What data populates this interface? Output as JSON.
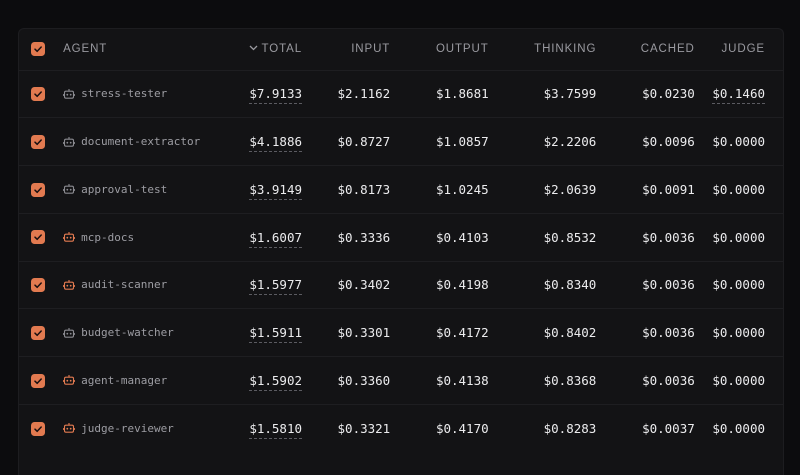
{
  "columns": {
    "agent": "AGENT",
    "total": "TOTAL",
    "input": "INPUT",
    "output": "OUTPUT",
    "thinking": "THINKING",
    "cached": "CACHED",
    "judge": "JUDGE"
  },
  "sort": {
    "column": "total",
    "direction": "desc",
    "icon": "chevron-down-icon"
  },
  "colors": {
    "accent": "#e27a50",
    "accent_muted": "#8a8a90"
  },
  "rows": [
    {
      "agent": "stress-tester",
      "icon": "bot-icon-muted",
      "selected": true,
      "total": "$7.9133",
      "input": "$2.1162",
      "output": "$1.8681",
      "thinking": "$3.7599",
      "cached": "$0.0230",
      "judge": "$0.1460"
    },
    {
      "agent": "document-extractor",
      "icon": "bot-icon-muted",
      "selected": true,
      "total": "$4.1886",
      "input": "$0.8727",
      "output": "$1.0857",
      "thinking": "$2.2206",
      "cached": "$0.0096",
      "judge": "$0.0000"
    },
    {
      "agent": "approval-test",
      "icon": "bot-icon-muted",
      "selected": true,
      "total": "$3.9149",
      "input": "$0.8173",
      "output": "$1.0245",
      "thinking": "$2.0639",
      "cached": "$0.0091",
      "judge": "$0.0000"
    },
    {
      "agent": "mcp-docs",
      "icon": "bot-icon-accent",
      "selected": true,
      "total": "$1.6007",
      "input": "$0.3336",
      "output": "$0.4103",
      "thinking": "$0.8532",
      "cached": "$0.0036",
      "judge": "$0.0000"
    },
    {
      "agent": "audit-scanner",
      "icon": "bot-icon-accent",
      "selected": true,
      "total": "$1.5977",
      "input": "$0.3402",
      "output": "$0.4198",
      "thinking": "$0.8340",
      "cached": "$0.0036",
      "judge": "$0.0000"
    },
    {
      "agent": "budget-watcher",
      "icon": "bot-icon-muted",
      "selected": true,
      "total": "$1.5911",
      "input": "$0.3301",
      "output": "$0.4172",
      "thinking": "$0.8402",
      "cached": "$0.0036",
      "judge": "$0.0000"
    },
    {
      "agent": "agent-manager",
      "icon": "bot-icon-accent",
      "selected": true,
      "total": "$1.5902",
      "input": "$0.3360",
      "output": "$0.4138",
      "thinking": "$0.8368",
      "cached": "$0.0036",
      "judge": "$0.0000"
    },
    {
      "agent": "judge-reviewer",
      "icon": "bot-icon-accent",
      "selected": true,
      "total": "$1.5810",
      "input": "$0.3321",
      "output": "$0.4170",
      "thinking": "$0.8283",
      "cached": "$0.0037",
      "judge": "$0.0000"
    }
  ]
}
